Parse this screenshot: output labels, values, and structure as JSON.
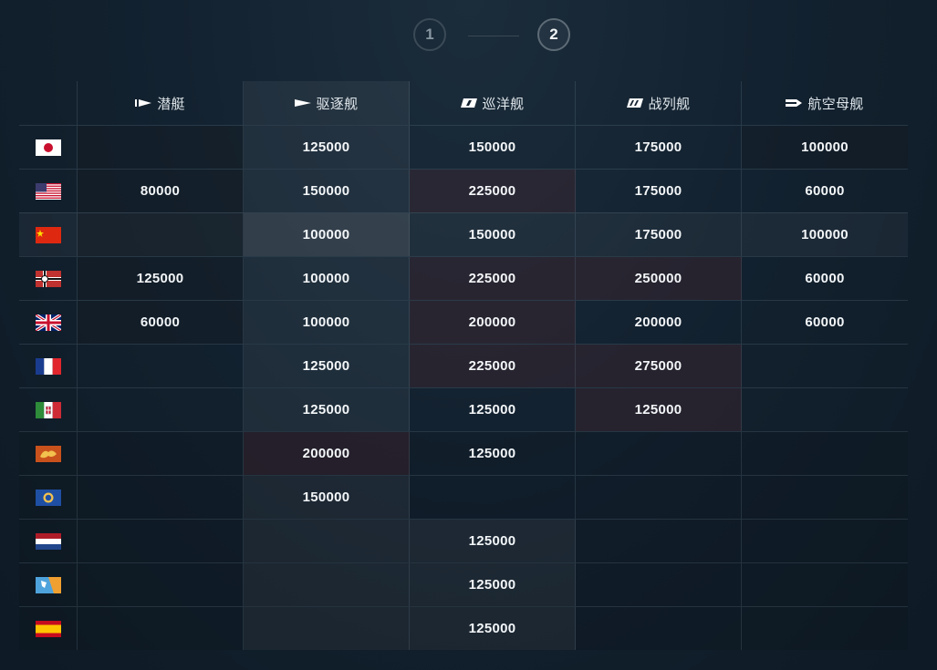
{
  "pagination": {
    "pages": [
      "1",
      "2"
    ],
    "current": "2"
  },
  "headers": [
    {
      "label": "潜艇",
      "icon": "submarine-icon"
    },
    {
      "label": "驱逐舰",
      "icon": "destroyer-icon"
    },
    {
      "label": "巡洋舰",
      "icon": "cruiser-icon"
    },
    {
      "label": "战列舰",
      "icon": "battleship-icon"
    },
    {
      "label": "航空母舰",
      "icon": "aircraft-carrier-icon"
    }
  ],
  "rows": [
    {
      "nation": "japan-flag",
      "values": [
        "",
        "125000",
        "150000",
        "175000",
        "100000"
      ]
    },
    {
      "nation": "usa-flag",
      "values": [
        "80000",
        "150000",
        "225000",
        "175000",
        "60000"
      ]
    },
    {
      "nation": "china-flag",
      "values": [
        "",
        "100000",
        "150000",
        "175000",
        "100000"
      ]
    },
    {
      "nation": "germany-flag",
      "values": [
        "125000",
        "100000",
        "225000",
        "250000",
        "60000"
      ]
    },
    {
      "nation": "uk-flag",
      "values": [
        "60000",
        "100000",
        "200000",
        "200000",
        "60000"
      ]
    },
    {
      "nation": "france-flag",
      "values": [
        "",
        "125000",
        "225000",
        "275000",
        ""
      ]
    },
    {
      "nation": "italy-flag",
      "values": [
        "",
        "125000",
        "125000",
        "125000",
        ""
      ]
    },
    {
      "nation": "pan-europe-flag",
      "values": [
        "",
        "200000",
        "125000",
        "",
        ""
      ]
    },
    {
      "nation": "commonwealth-flag",
      "values": [
        "",
        "150000",
        "",
        "",
        ""
      ]
    },
    {
      "nation": "netherlands-flag",
      "values": [
        "",
        "",
        "125000",
        "",
        ""
      ]
    },
    {
      "nation": "pan-america-flag",
      "values": [
        "",
        "",
        "125000",
        "",
        ""
      ]
    },
    {
      "nation": "spain-flag",
      "values": [
        "",
        "",
        "125000",
        "",
        ""
      ]
    }
  ]
}
